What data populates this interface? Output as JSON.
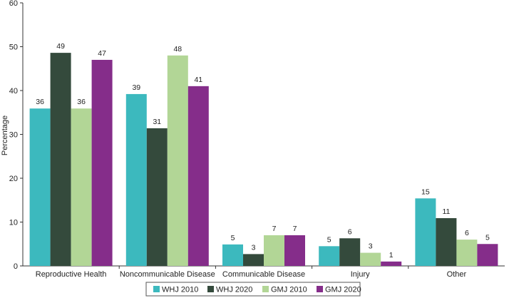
{
  "chart_data": {
    "type": "bar",
    "title": "",
    "xlabel": "",
    "ylabel": "Percentage",
    "ylim": [
      0,
      60
    ],
    "yticks": [
      0,
      10,
      20,
      30,
      40,
      50,
      60
    ],
    "grid": false,
    "legend_position": "bottom",
    "categories": [
      "Reproductive Health",
      "Noncommunicable Disease",
      "Communicable Disease",
      "Injury",
      "Other"
    ],
    "series": [
      {
        "name": "WHJ 2010",
        "color": "#3cb9be",
        "values": [
          36,
          39,
          5,
          5,
          15
        ],
        "labels": [
          "36",
          "39",
          "5",
          "5",
          "15"
        ],
        "heights": [
          35.9,
          39.2,
          4.9,
          4.5,
          15.4
        ]
      },
      {
        "name": "WHJ 2020",
        "color": "#344a3c",
        "values": [
          49,
          31,
          3,
          6,
          11
        ],
        "labels": [
          "49",
          "31",
          "3",
          "6",
          "11"
        ],
        "heights": [
          48.6,
          31.4,
          2.7,
          6.3,
          10.9
        ]
      },
      {
        "name": "GMJ 2010",
        "color": "#b2d696",
        "values": [
          36,
          48,
          7,
          3,
          6
        ],
        "labels": [
          "36",
          "48",
          "7",
          "3",
          "6"
        ],
        "heights": [
          35.9,
          48.0,
          7.0,
          3.0,
          6.0
        ]
      },
      {
        "name": "GMJ 2020",
        "color": "#852d8a",
        "values": [
          47,
          41,
          7,
          1,
          5
        ],
        "labels": [
          "47",
          "41",
          "7",
          "1",
          "5"
        ],
        "heights": [
          47.0,
          41.0,
          7.0,
          1.0,
          5.0
        ]
      }
    ]
  }
}
